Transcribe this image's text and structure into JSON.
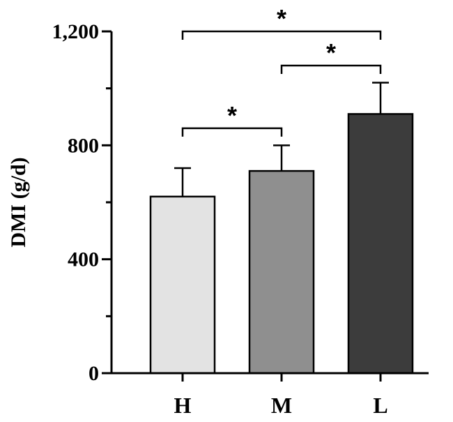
{
  "chart_data": {
    "type": "bar",
    "ylabel": "DMI (g/d)",
    "xlabel": "",
    "categories": [
      "H",
      "M",
      "L"
    ],
    "values": [
      620,
      710,
      910
    ],
    "errors": [
      100,
      90,
      110
    ],
    "colors": [
      "#e3e3e3",
      "#8f8f8f",
      "#3c3c3c"
    ],
    "ylim": [
      0,
      1200
    ],
    "yticks": [
      0,
      400,
      800,
      1200
    ],
    "ytick_labels": [
      "0",
      "400",
      "800",
      "1,200"
    ],
    "minor_ticks": [
      200,
      600,
      1000
    ],
    "grid": false,
    "significance": [
      {
        "from": "H",
        "to": "M",
        "label": "*",
        "y": 860
      },
      {
        "from": "M",
        "to": "L",
        "label": "*",
        "y": 1080
      },
      {
        "from": "H",
        "to": "L",
        "label": "*",
        "y": 1200
      }
    ]
  }
}
